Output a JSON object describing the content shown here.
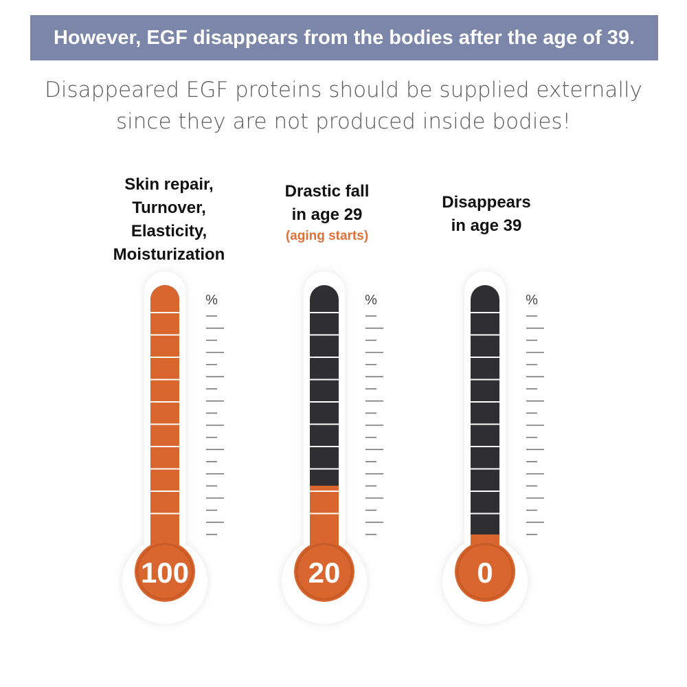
{
  "header": {
    "banner_text": "However, EGF disappears from the bodies after the age of 39.",
    "subtitle_line1": "Disappeared EGF proteins should be supplied externally",
    "subtitle_line2": "since they are not produced inside bodies!"
  },
  "colors": {
    "banner": "#7b86a8",
    "orange": "#d8662e",
    "dark": "#2f2f33",
    "note": "#e0703a"
  },
  "chart_data": {
    "type": "bar",
    "unit": "%",
    "ylim": [
      0,
      100
    ],
    "segments": 10,
    "categories": [
      {
        "caption": [
          "Skin repair,",
          "Turnover,",
          "Elasticity,",
          "Moisturization"
        ],
        "note": "",
        "value": 100,
        "value_label": "100"
      },
      {
        "caption": [
          "Drastic fall",
          "in age 29"
        ],
        "note": "(aging starts)",
        "value": 20,
        "value_label": "20"
      },
      {
        "caption": [
          "Disappears",
          "in age 39"
        ],
        "note": "",
        "value": 0,
        "value_label": "0"
      }
    ]
  }
}
